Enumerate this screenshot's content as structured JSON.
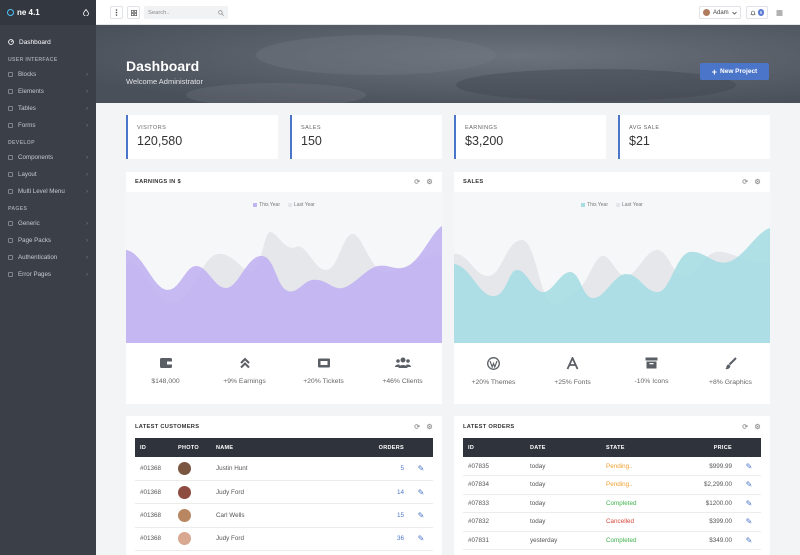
{
  "brand": {
    "name": "ne 4.1"
  },
  "sidebar": {
    "dashboard": "Dashboard",
    "sections": [
      {
        "title": "USER INTERFACE",
        "items": [
          "Blocks",
          "Elements",
          "Tables",
          "Forms"
        ]
      },
      {
        "title": "DEVELOP",
        "items": [
          "Components",
          "Layout",
          "Multi Level Menu"
        ]
      },
      {
        "title": "PAGES",
        "items": [
          "Generic",
          "Page Packs",
          "Authentication",
          "Error Pages"
        ]
      }
    ]
  },
  "topbar": {
    "search_placeholder": "Search..",
    "user_name": "Adam",
    "notification_count": "6"
  },
  "hero": {
    "title": "Dashboard",
    "subtitle": "Welcome Administrator",
    "button": "New Project"
  },
  "stats": [
    {
      "label": "VISITORS",
      "value": "120,580"
    },
    {
      "label": "SALES",
      "value": "150"
    },
    {
      "label": "EARNINGS",
      "value": "$3,200"
    },
    {
      "label": "AVG SALE",
      "value": "$21"
    }
  ],
  "earnings": {
    "title": "EARNINGS IN $",
    "legend": [
      "This Year",
      "Last Year"
    ],
    "footer": [
      {
        "icon": "wallet-icon",
        "text": "$148,000"
      },
      {
        "icon": "chevron-up-double-icon",
        "text": "+9% Earnings"
      },
      {
        "icon": "ticket-icon",
        "text": "+20% Tickets"
      },
      {
        "icon": "users-icon",
        "text": "+46% Clients"
      }
    ]
  },
  "sales": {
    "title": "SALES",
    "legend": [
      "This Year",
      "Last Year"
    ],
    "footer": [
      {
        "icon": "wordpress-icon",
        "text": "+20% Themes"
      },
      {
        "icon": "font-icon",
        "text": "+25% Fonts"
      },
      {
        "icon": "archive-icon",
        "text": "-10% Icons"
      },
      {
        "icon": "paintbrush-icon",
        "text": "+8% Graphics"
      }
    ]
  },
  "chart_data": [
    {
      "type": "area",
      "title": "EARNINGS IN $",
      "series": [
        {
          "name": "This Year",
          "color": "#c2b4f2"
        },
        {
          "name": "Last Year",
          "color": "#e4e6ea"
        }
      ]
    },
    {
      "type": "area",
      "title": "SALES",
      "series": [
        {
          "name": "This Year",
          "color": "#a8dde4"
        },
        {
          "name": "Last Year",
          "color": "#e4e6ea"
        }
      ]
    }
  ],
  "customers": {
    "title": "LATEST CUSTOMERS",
    "headers": [
      "ID",
      "PHOTO",
      "NAME",
      "ORDERS"
    ],
    "rows": [
      {
        "id": "#01368",
        "name": "Justin Hunt",
        "orders": "5"
      },
      {
        "id": "#01368",
        "name": "Judy Ford",
        "orders": "14"
      },
      {
        "id": "#01368",
        "name": "Carl Wells",
        "orders": "15"
      },
      {
        "id": "#01368",
        "name": "Judy Ford",
        "orders": "36"
      }
    ]
  },
  "orders": {
    "title": "LATEST ORDERS",
    "headers": [
      "ID",
      "DATE",
      "STATE",
      "PRICE"
    ],
    "rows": [
      {
        "id": "#07835",
        "date": "today",
        "state": "Pending..",
        "price": "$999.99"
      },
      {
        "id": "#07834",
        "date": "today",
        "state": "Pending..",
        "price": "$2,299.00"
      },
      {
        "id": "#07833",
        "date": "today",
        "state": "Completed",
        "price": "$1200.00"
      },
      {
        "id": "#07832",
        "date": "today",
        "state": "Cancelled",
        "price": "$399.00"
      },
      {
        "id": "#07831",
        "date": "yesterday",
        "state": "Completed",
        "price": "$349.00"
      }
    ]
  },
  "colors": {
    "accent": "#4b75c9",
    "pending": "#f0a030",
    "completed": "#3fb24d",
    "cancelled": "#d9483b",
    "sidebar": "#3a3f48"
  }
}
